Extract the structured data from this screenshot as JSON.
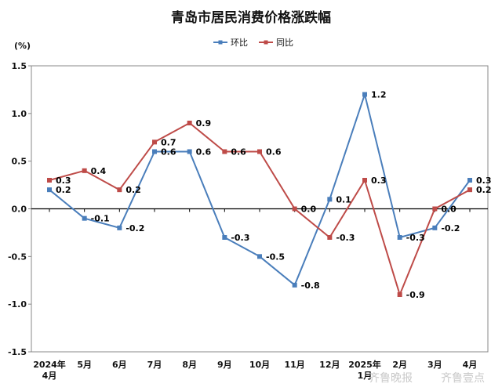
{
  "chart_data": {
    "type": "line",
    "title": "青岛市居民消费价格涨跌幅",
    "ylabel": "(%)",
    "ylim": [
      -1.5,
      1.5
    ],
    "yticks": [
      "1.5",
      "1.0",
      "0.5",
      "0.0",
      "-0.5",
      "-1.0",
      "-1.5"
    ],
    "ytick_values": [
      1.5,
      1.0,
      0.5,
      0.0,
      -0.5,
      -1.0,
      -1.5
    ],
    "categories": [
      [
        "2024年",
        "4月"
      ],
      [
        "5月"
      ],
      [
        "6月"
      ],
      [
        "7月"
      ],
      [
        "8月"
      ],
      [
        "9月"
      ],
      [
        "10月"
      ],
      [
        "11月"
      ],
      [
        "12月"
      ],
      [
        "2025年",
        "1月"
      ],
      [
        "2月"
      ],
      [
        "3月"
      ],
      [
        "4月"
      ]
    ],
    "legend_position": "top-center",
    "grid": false,
    "series": [
      {
        "name": "环比",
        "color": "#4a7ebb",
        "values": [
          0.2,
          -0.1,
          -0.2,
          0.6,
          0.6,
          -0.3,
          -0.5,
          -0.8,
          0.1,
          1.2,
          -0.3,
          -0.2,
          0.3
        ],
        "labels": [
          "0.2",
          "-0.1",
          "-0.2",
          "0.6",
          "0.6",
          "-0.3",
          "-0.5",
          "-0.8",
          "0.1",
          "1.2",
          "-0.3",
          "-0.2",
          "0.3"
        ]
      },
      {
        "name": "同比",
        "color": "#be4b48",
        "values": [
          0.3,
          0.4,
          0.2,
          0.7,
          0.9,
          0.6,
          0.6,
          0.0,
          -0.3,
          0.3,
          -0.9,
          0.0,
          0.2
        ],
        "labels": [
          "0.3",
          "0.4",
          "0.2",
          "0.7",
          "0.9",
          "0.6",
          "0.6",
          "0.0",
          "-0.3",
          "0.3",
          "-0.9",
          "0.0",
          "0.2"
        ]
      }
    ]
  },
  "watermark": {
    "text1": "齐鲁晚报",
    "text2": "齐鲁壹点"
  }
}
